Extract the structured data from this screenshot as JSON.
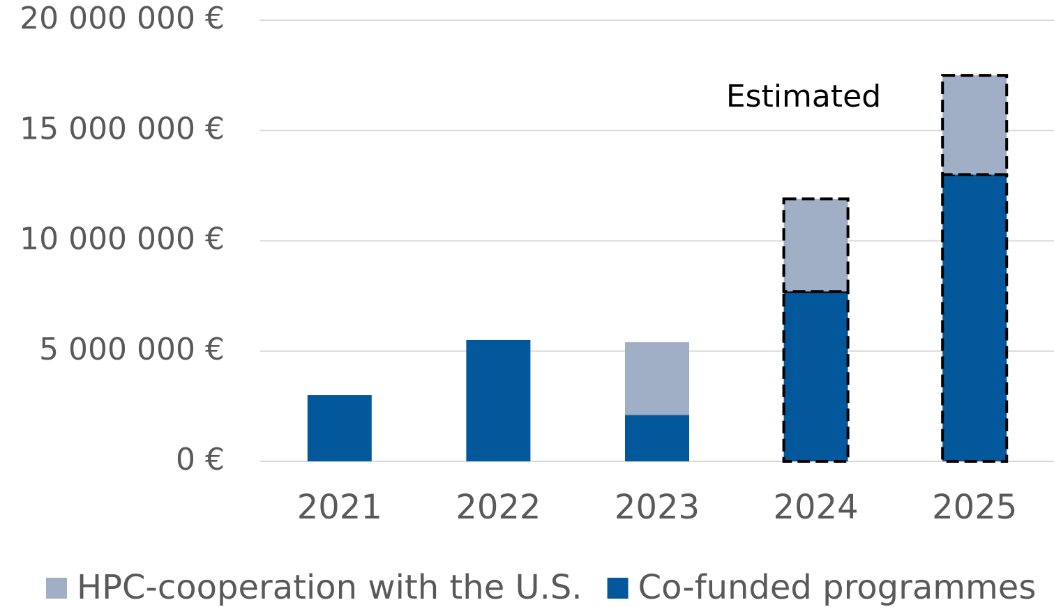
{
  "chart_data": {
    "type": "stacked-bar",
    "annotation": "Estimated",
    "categories": [
      "2021",
      "2022",
      "2023",
      "2024",
      "2025"
    ],
    "estimated": [
      false,
      false,
      false,
      true,
      true
    ],
    "series": [
      {
        "name": "Co-funded programmes",
        "color": "#02589b",
        "values": [
          3000000,
          5500000,
          2100000,
          7700000,
          13000000
        ]
      },
      {
        "name": "HPC-cooperation with the U.S.",
        "color": "#a0aec6",
        "values": [
          0,
          0,
          3300000,
          4200000,
          4500000
        ]
      }
    ],
    "ylim": [
      0,
      20000000
    ],
    "yticks": [
      {
        "value": 0,
        "label": "0 €"
      },
      {
        "value": 5000000,
        "label": "5 000 000 €"
      },
      {
        "value": 10000000,
        "label": "10 000 000 €"
      },
      {
        "value": 15000000,
        "label": "15 000 000 €"
      },
      {
        "value": 20000000,
        "label": "20 000 000 €"
      }
    ],
    "grid": true
  }
}
